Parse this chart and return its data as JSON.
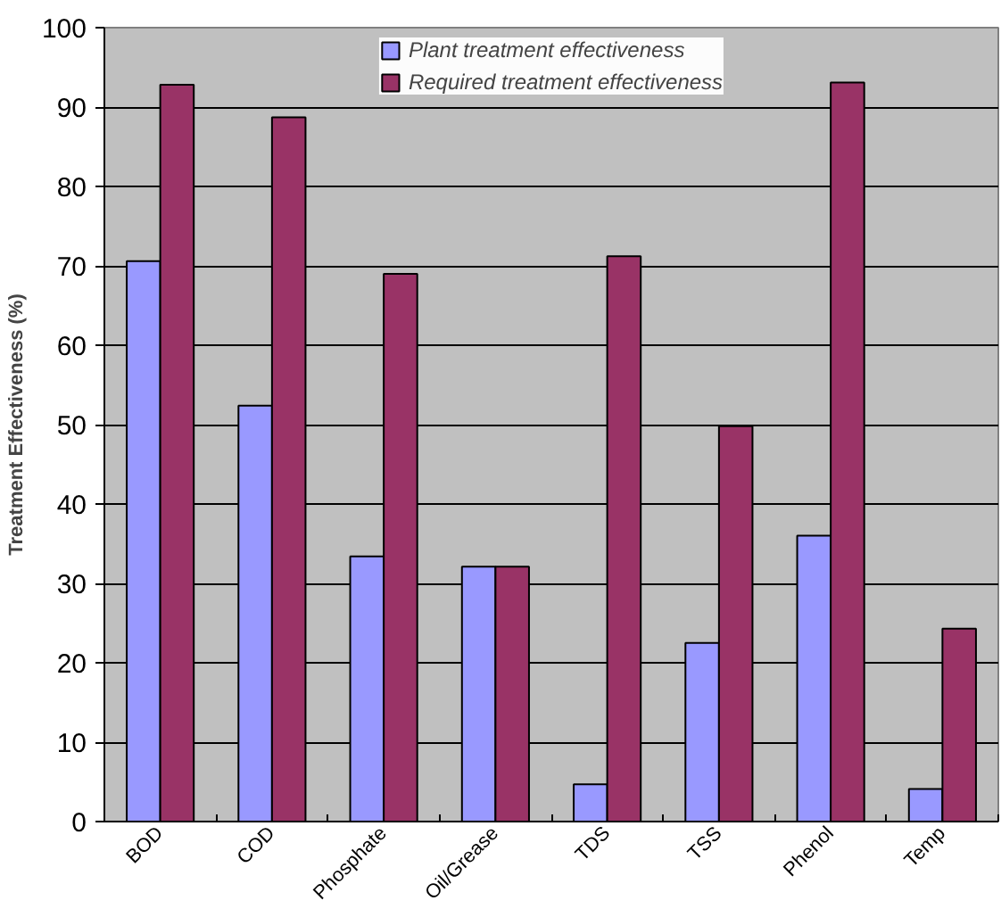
{
  "chart_data": {
    "type": "bar",
    "ylabel": "Treatment Effectiveness (%)",
    "categories": [
      "BOD",
      "COD",
      "Phosphate",
      "Oil/Grease",
      "TDS",
      "TSS",
      "Phenol",
      "Temp"
    ],
    "series": [
      {
        "name": "Plant treatment effectiveness",
        "color": "#9999ff",
        "values": [
          70.6,
          52.4,
          33.4,
          32.1,
          4.7,
          22.5,
          36.0,
          4.1
        ]
      },
      {
        "name": "Required treatment effectiveness",
        "color": "#993366",
        "values": [
          92.8,
          88.7,
          69.0,
          32.1,
          71.2,
          49.8,
          93.1,
          24.3
        ]
      }
    ],
    "ylim": [
      0,
      100
    ],
    "yticks": [
      0,
      10,
      20,
      30,
      40,
      50,
      60,
      70,
      80,
      90,
      100
    ],
    "grid": "y",
    "legend": "top"
  }
}
